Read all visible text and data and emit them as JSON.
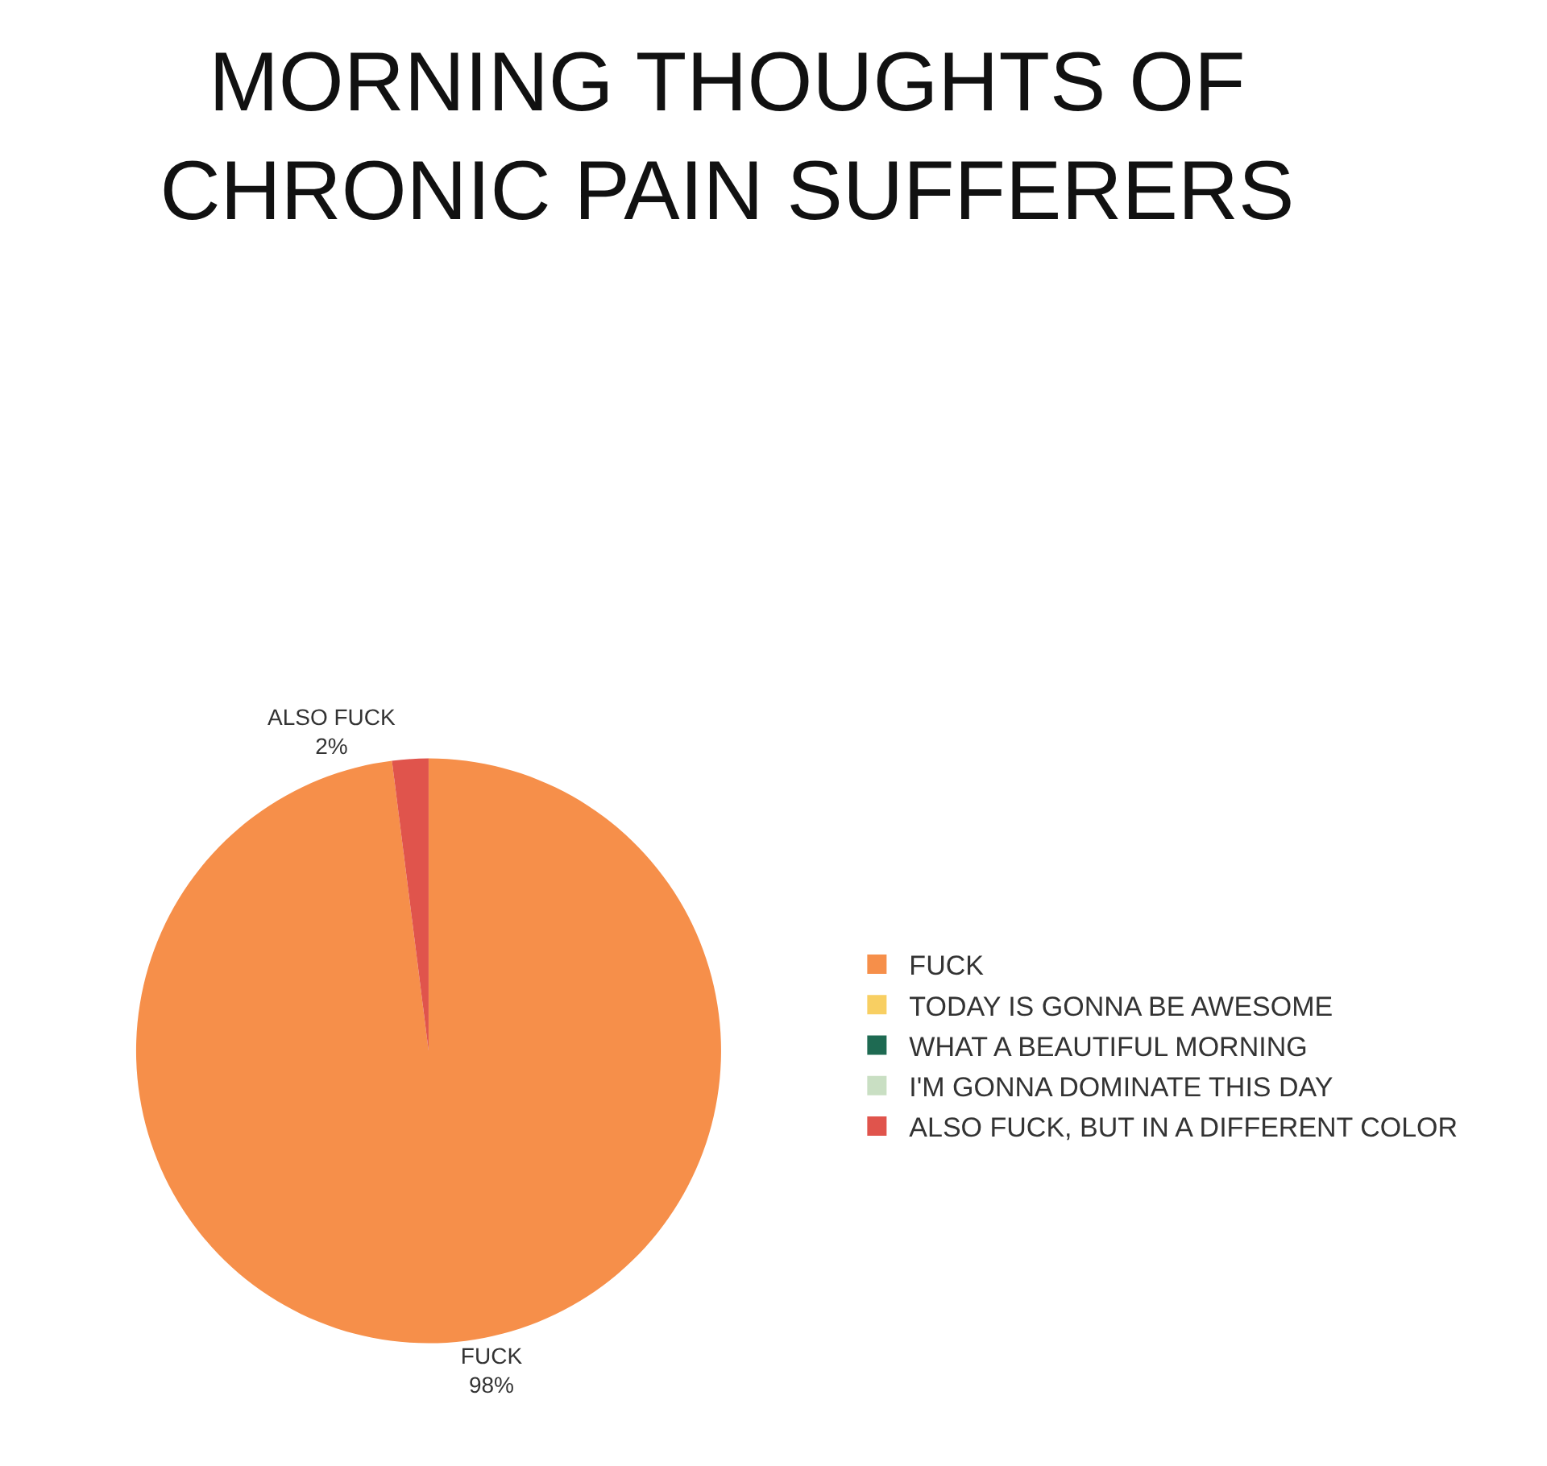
{
  "chart_data": {
    "type": "pie",
    "title": "MORNING THOUGHTS OF\nCHRONIC PAIN SUFFERERS",
    "categories": [
      "FUCK",
      "TODAY IS GONNA BE AWESOME",
      "WHAT A BEAUTIFUL MORNING",
      "I'M GONNA DOMINATE THIS DAY",
      "ALSO FUCK, BUT IN A DIFFERENT COLOR"
    ],
    "values": [
      98,
      0,
      0,
      0,
      2
    ],
    "colors": [
      "#f68f4a",
      "#f8cf62",
      "#1e6a52",
      "#c9dfc3",
      "#e0544c"
    ],
    "value_labels": [
      "FUCK\n98%",
      null,
      null,
      null,
      "ALSO FUCK\n2%"
    ],
    "legend": "right"
  }
}
